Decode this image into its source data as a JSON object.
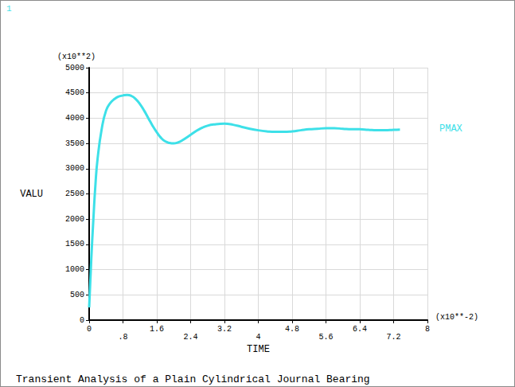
{
  "chart_data": {
    "type": "line",
    "title": "Transient Analysis of a Plain Cylindrical Journal Bearing",
    "window_label": "1",
    "xlabel": "TIME",
    "ylabel": "VALU",
    "x_scale_label": "(x10**-2)",
    "y_scale_label": "(x10**2)",
    "xlim": [
      0,
      8
    ],
    "xticks": [
      0,
      {
        "value": 0.8,
        "label": ".8"
      },
      1.6,
      2.4,
      3.2,
      4,
      4.8,
      5.6,
      6.4,
      7.2,
      8
    ],
    "ylim": [
      0,
      5000
    ],
    "yticks": [
      0,
      500,
      1000,
      1500,
      2000,
      2500,
      3000,
      3500,
      4000,
      4500,
      5000
    ],
    "grid": true,
    "legend": "right",
    "series": [
      {
        "name": "PMAX",
        "color": "#3de0e8",
        "x": [
          0,
          0.05,
          0.1,
          0.15,
          0.2,
          0.3,
          0.4,
          0.5,
          0.6,
          0.7,
          0.8,
          0.9,
          1.0,
          1.1,
          1.2,
          1.3,
          1.4,
          1.5,
          1.6,
          1.7,
          1.8,
          1.9,
          2.0,
          2.1,
          2.2,
          2.4,
          2.6,
          2.8,
          3.0,
          3.2,
          3.4,
          3.6,
          3.8,
          4.0,
          4.2,
          4.4,
          4.6,
          4.8,
          5.0,
          5.2,
          5.4,
          5.6,
          5.8,
          6.0,
          6.2,
          6.4,
          6.6,
          6.8,
          7.0,
          7.2,
          7.35
        ],
        "values": [
          250,
          1200,
          2000,
          2700,
          3200,
          3800,
          4150,
          4300,
          4380,
          4430,
          4450,
          4460,
          4440,
          4380,
          4280,
          4150,
          4000,
          3850,
          3720,
          3610,
          3540,
          3510,
          3500,
          3520,
          3560,
          3670,
          3780,
          3850,
          3880,
          3890,
          3870,
          3830,
          3790,
          3760,
          3740,
          3730,
          3730,
          3740,
          3760,
          3780,
          3790,
          3800,
          3800,
          3790,
          3780,
          3780,
          3770,
          3760,
          3760,
          3770,
          3775
        ]
      }
    ]
  }
}
